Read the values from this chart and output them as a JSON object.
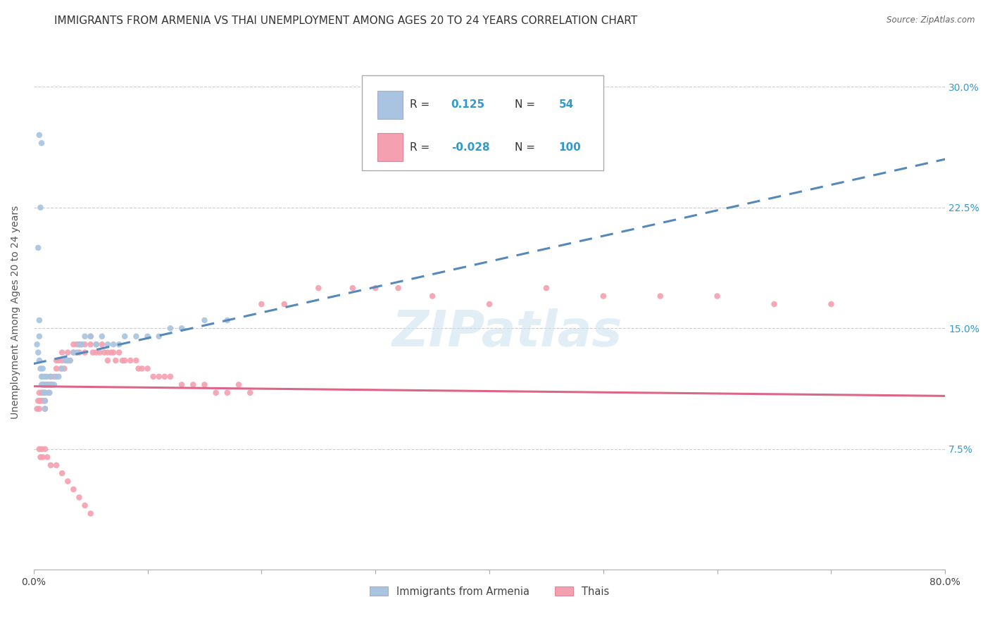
{
  "title": "IMMIGRANTS FROM ARMENIA VS THAI UNEMPLOYMENT AMONG AGES 20 TO 24 YEARS CORRELATION CHART",
  "source": "Source: ZipAtlas.com",
  "ylabel": "Unemployment Among Ages 20 to 24 years",
  "xlim": [
    0.0,
    0.8
  ],
  "ylim": [
    0.0,
    0.32
  ],
  "ytick_vals": [
    0.075,
    0.15,
    0.225,
    0.3
  ],
  "ytick_labels": [
    "7.5%",
    "15.0%",
    "22.5%",
    "30.0%"
  ],
  "xtick_vals": [
    0.0,
    0.1,
    0.2,
    0.3,
    0.4,
    0.5,
    0.6,
    0.7,
    0.8
  ],
  "xtick_labels": [
    "0.0%",
    "",
    "",
    "",
    "",
    "",
    "",
    "",
    "80.0%"
  ],
  "legend_R1": "0.125",
  "legend_N1": "54",
  "legend_R2": "-0.028",
  "legend_N2": "100",
  "color_armenia": "#a8c4e0",
  "color_thai": "#f4a0b0",
  "trendline_armenia_color": "#5588bb",
  "trendline_thai_color": "#dd6688",
  "watermark": "ZIPatlas",
  "title_fontsize": 11,
  "axis_label_fontsize": 10,
  "tick_fontsize": 10,
  "armenia_x": [
    0.003,
    0.004,
    0.005,
    0.005,
    0.005,
    0.006,
    0.007,
    0.007,
    0.008,
    0.008,
    0.008,
    0.009,
    0.009,
    0.01,
    0.01,
    0.01,
    0.01,
    0.01,
    0.012,
    0.012,
    0.013,
    0.014,
    0.015,
    0.016,
    0.018,
    0.02,
    0.022,
    0.025,
    0.028,
    0.03,
    0.032,
    0.035,
    0.038,
    0.04,
    0.042,
    0.045,
    0.05,
    0.055,
    0.06,
    0.065,
    0.07,
    0.075,
    0.08,
    0.09,
    0.1,
    0.11,
    0.12,
    0.13,
    0.15,
    0.17,
    0.005,
    0.007,
    0.006,
    0.004
  ],
  "armenia_y": [
    0.14,
    0.135,
    0.155,
    0.145,
    0.13,
    0.125,
    0.12,
    0.115,
    0.125,
    0.12,
    0.115,
    0.115,
    0.11,
    0.12,
    0.115,
    0.11,
    0.105,
    0.1,
    0.12,
    0.115,
    0.115,
    0.11,
    0.12,
    0.115,
    0.115,
    0.12,
    0.12,
    0.125,
    0.13,
    0.13,
    0.13,
    0.135,
    0.135,
    0.14,
    0.14,
    0.145,
    0.145,
    0.14,
    0.145,
    0.14,
    0.14,
    0.14,
    0.145,
    0.145,
    0.145,
    0.145,
    0.15,
    0.15,
    0.155,
    0.155,
    0.27,
    0.265,
    0.225,
    0.2
  ],
  "thai_x": [
    0.003,
    0.004,
    0.005,
    0.005,
    0.005,
    0.006,
    0.007,
    0.008,
    0.008,
    0.009,
    0.01,
    0.01,
    0.01,
    0.01,
    0.012,
    0.013,
    0.014,
    0.015,
    0.015,
    0.016,
    0.018,
    0.02,
    0.02,
    0.022,
    0.024,
    0.025,
    0.025,
    0.027,
    0.028,
    0.03,
    0.03,
    0.032,
    0.035,
    0.035,
    0.038,
    0.04,
    0.04,
    0.042,
    0.045,
    0.045,
    0.05,
    0.05,
    0.052,
    0.055,
    0.055,
    0.058,
    0.06,
    0.062,
    0.065,
    0.065,
    0.068,
    0.07,
    0.072,
    0.075,
    0.078,
    0.08,
    0.085,
    0.09,
    0.092,
    0.095,
    0.1,
    0.105,
    0.11,
    0.115,
    0.12,
    0.13,
    0.14,
    0.15,
    0.16,
    0.17,
    0.18,
    0.19,
    0.2,
    0.22,
    0.25,
    0.28,
    0.3,
    0.32,
    0.35,
    0.4,
    0.45,
    0.5,
    0.55,
    0.6,
    0.65,
    0.7,
    0.005,
    0.006,
    0.007,
    0.008,
    0.01,
    0.012,
    0.015,
    0.02,
    0.025,
    0.03,
    0.035,
    0.04,
    0.045,
    0.05
  ],
  "thai_y": [
    0.1,
    0.105,
    0.11,
    0.105,
    0.1,
    0.105,
    0.11,
    0.11,
    0.105,
    0.105,
    0.115,
    0.11,
    0.105,
    0.1,
    0.115,
    0.11,
    0.115,
    0.12,
    0.115,
    0.115,
    0.12,
    0.13,
    0.125,
    0.13,
    0.125,
    0.135,
    0.13,
    0.125,
    0.13,
    0.135,
    0.13,
    0.13,
    0.14,
    0.135,
    0.14,
    0.14,
    0.135,
    0.14,
    0.14,
    0.135,
    0.145,
    0.14,
    0.135,
    0.14,
    0.135,
    0.135,
    0.14,
    0.135,
    0.135,
    0.13,
    0.135,
    0.135,
    0.13,
    0.135,
    0.13,
    0.13,
    0.13,
    0.13,
    0.125,
    0.125,
    0.125,
    0.12,
    0.12,
    0.12,
    0.12,
    0.115,
    0.115,
    0.115,
    0.11,
    0.11,
    0.115,
    0.11,
    0.165,
    0.165,
    0.175,
    0.175,
    0.175,
    0.175,
    0.17,
    0.165,
    0.175,
    0.17,
    0.17,
    0.17,
    0.165,
    0.165,
    0.075,
    0.07,
    0.075,
    0.07,
    0.075,
    0.07,
    0.065,
    0.065,
    0.06,
    0.055,
    0.05,
    0.045,
    0.04,
    0.035
  ],
  "arm_trend_x0": 0.0,
  "arm_trend_y0": 0.128,
  "arm_trend_x1": 0.8,
  "arm_trend_y1": 0.255,
  "thai_trend_x0": 0.0,
  "thai_trend_y0": 0.114,
  "thai_trend_x1": 0.8,
  "thai_trend_y1": 0.108
}
